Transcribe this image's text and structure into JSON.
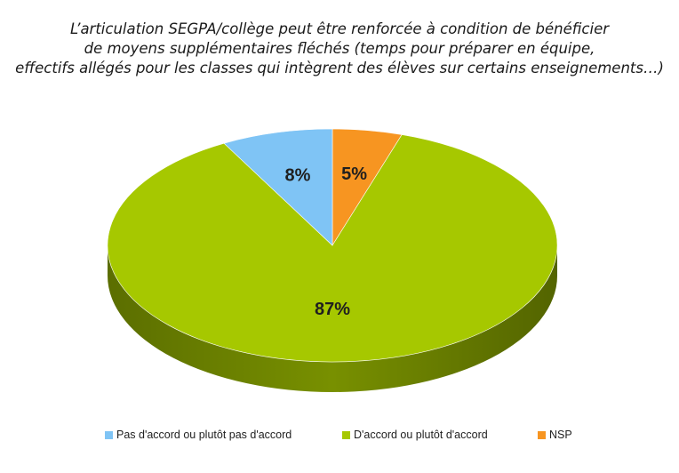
{
  "chart_data": {
    "type": "pie",
    "title_lines": [
      "L’articulation SEGPA/collège peut être renforcée à condition de bénéficier",
      "de moyens supplémentaires  fléchés (temps pour préparer en équipe,",
      "effectifs allégés  pour les classes qui intègrent des élèves sur certains enseignements…)"
    ],
    "slices": [
      {
        "name": "Pas d'accord ou plutôt pas d'accord",
        "value": 8,
        "label": "8%",
        "color": "#7fc4f5"
      },
      {
        "name": "D'accord ou plutôt d'accord",
        "value": 87,
        "label": "87%",
        "color": "#a6c800"
      },
      {
        "name": "NSP",
        "value": 5,
        "label": "5%",
        "color": "#f79521"
      }
    ],
    "legend_position": "bottom",
    "style": "3d"
  }
}
